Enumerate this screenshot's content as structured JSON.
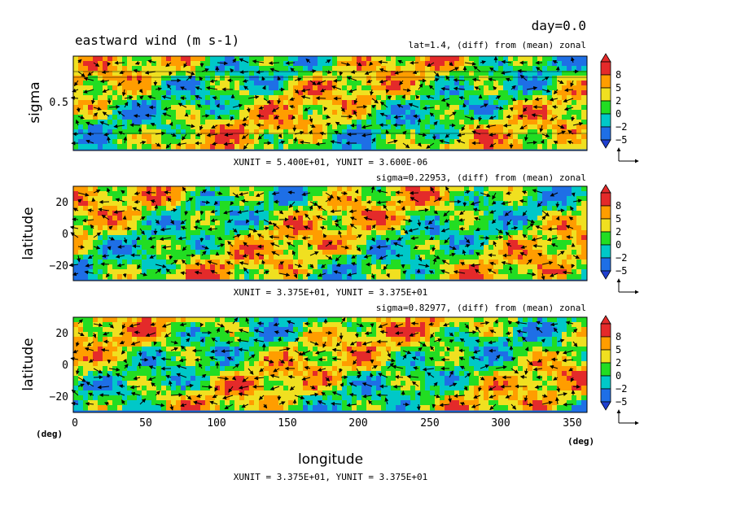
{
  "header": {
    "day_label": "day=0.0",
    "title": "eastward wind (m s-1)"
  },
  "colors": {
    "blue": "#1e6fe6",
    "cyan": "#00c8c8",
    "green": "#22dd22",
    "yellow": "#f0e020",
    "orange": "#ff9d00",
    "red": "#e42a2a",
    "dark_blue": "#2040d0"
  },
  "colorbar": {
    "tick_labels": [
      "8",
      "5",
      "2",
      "0",
      "−2",
      "−5"
    ]
  },
  "chart_data": [
    {
      "type": "heatmap",
      "panel": "top",
      "title": "lat=1.4, (diff) from (mean) zonal",
      "ylabel": "sigma",
      "yticks": [
        "0.5"
      ],
      "ylim": [
        0,
        1
      ],
      "xlim": [
        0,
        360
      ],
      "vector_note": "XUNIT = 5.400E+01, YUNIT = 3.600E-06",
      "levels": [
        -5,
        -2,
        0,
        2,
        5,
        8
      ]
    },
    {
      "type": "heatmap",
      "panel": "middle",
      "title": "sigma=0.22953, (diff) from (mean) zonal",
      "ylabel": "latitude",
      "yticks": [
        "20",
        "0",
        "−20"
      ],
      "ylim": [
        -30,
        30
      ],
      "xlim": [
        0,
        360
      ],
      "vector_note": "XUNIT = 3.375E+01, YUNIT = 3.375E+01",
      "levels": [
        -5,
        -2,
        0,
        2,
        5,
        8
      ]
    },
    {
      "type": "heatmap",
      "panel": "bottom",
      "title": "sigma=0.82977, (diff) from (mean) zonal",
      "ylabel": "latitude",
      "yticks": [
        "20",
        "0",
        "−20"
      ],
      "ylim": [
        -30,
        30
      ],
      "xlim": [
        0,
        360
      ],
      "xlabel": "longitude",
      "xticks": [
        "0",
        "50",
        "100",
        "150",
        "200",
        "250",
        "300",
        "350"
      ],
      "x_unit_left": "(deg)",
      "x_unit_right": "(deg)",
      "vector_note": "XUNIT = 3.375E+01, YUNIT = 3.375E+01",
      "levels": [
        -5,
        -2,
        0,
        2,
        5,
        8
      ]
    }
  ]
}
